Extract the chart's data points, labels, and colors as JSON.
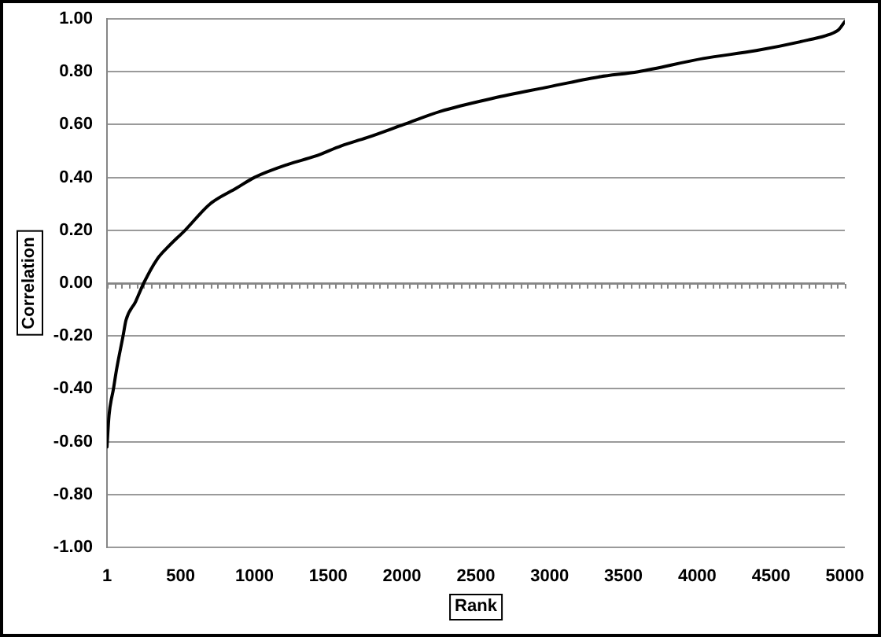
{
  "chart_data": {
    "type": "line",
    "xlabel": "Rank",
    "ylabel": "Correlation",
    "color": "#000000",
    "x": [
      1,
      15,
      45,
      65,
      110,
      130,
      195,
      250,
      340,
      420,
      530,
      700,
      880,
      1000,
      1230,
      1410,
      1590,
      1760,
      2010,
      2260,
      2620,
      2970,
      3330,
      3600,
      4040,
      4400,
      4750,
      4890,
      4960,
      5000
    ],
    "values": [
      -0.62,
      -0.5,
      -0.4,
      -0.33,
      -0.2,
      -0.14,
      -0.07,
      0.0,
      0.09,
      0.14,
      0.2,
      0.3,
      0.36,
      0.4,
      0.45,
      0.48,
      0.52,
      0.55,
      0.6,
      0.65,
      0.7,
      0.74,
      0.78,
      0.8,
      0.85,
      0.88,
      0.92,
      0.94,
      0.96,
      0.99
    ],
    "xlim": [
      1,
      5000
    ],
    "xticks": [
      1,
      {
        "value": 50,
        "label": null
      },
      {
        "value": 100,
        "label": null
      },
      {
        "value": 150,
        "label": null
      },
      {
        "value": 200,
        "label": null
      },
      {
        "value": 250,
        "label": null
      },
      {
        "value": 300,
        "label": null
      },
      {
        "value": 350,
        "label": null
      },
      {
        "value": 400,
        "label": null
      },
      {
        "value": 450,
        "label": null
      },
      500,
      {
        "value": 550,
        "label": null
      },
      {
        "value": 600,
        "label": null
      },
      {
        "value": 650,
        "label": null
      },
      {
        "value": 700,
        "label": null
      },
      {
        "value": 750,
        "label": null
      },
      {
        "value": 800,
        "label": null
      },
      {
        "value": 850,
        "label": null
      },
      {
        "value": 900,
        "label": null
      },
      {
        "value": 950,
        "label": null
      },
      1000,
      {
        "value": 1050,
        "label": null
      },
      {
        "value": 1100,
        "label": null
      },
      {
        "value": 1150,
        "label": null
      },
      {
        "value": 1200,
        "label": null
      },
      {
        "value": 1250,
        "label": null
      },
      {
        "value": 1300,
        "label": null
      },
      {
        "value": 1350,
        "label": null
      },
      {
        "value": 1400,
        "label": null
      },
      {
        "value": 1450,
        "label": null
      },
      1500,
      {
        "value": 1550,
        "label": null
      },
      {
        "value": 1600,
        "label": null
      },
      {
        "value": 1650,
        "label": null
      },
      {
        "value": 1700,
        "label": null
      },
      {
        "value": 1750,
        "label": null
      },
      {
        "value": 1800,
        "label": null
      },
      {
        "value": 1850,
        "label": null
      },
      {
        "value": 1900,
        "label": null
      },
      {
        "value": 1950,
        "label": null
      },
      2000,
      {
        "value": 2050,
        "label": null
      },
      {
        "value": 2100,
        "label": null
      },
      {
        "value": 2150,
        "label": null
      },
      {
        "value": 2200,
        "label": null
      },
      {
        "value": 2250,
        "label": null
      },
      {
        "value": 2300,
        "label": null
      },
      {
        "value": 2350,
        "label": null
      },
      {
        "value": 2400,
        "label": null
      },
      {
        "value": 2450,
        "label": null
      },
      2500,
      {
        "value": 2550,
        "label": null
      },
      {
        "value": 2600,
        "label": null
      },
      {
        "value": 2650,
        "label": null
      },
      {
        "value": 2700,
        "label": null
      },
      {
        "value": 2750,
        "label": null
      },
      {
        "value": 2800,
        "label": null
      },
      {
        "value": 2850,
        "label": null
      },
      {
        "value": 2900,
        "label": null
      },
      {
        "value": 2950,
        "label": null
      },
      3000,
      {
        "value": 3050,
        "label": null
      },
      {
        "value": 3100,
        "label": null
      },
      {
        "value": 3150,
        "label": null
      },
      {
        "value": 3200,
        "label": null
      },
      {
        "value": 3250,
        "label": null
      },
      {
        "value": 3300,
        "label": null
      },
      {
        "value": 3350,
        "label": null
      },
      {
        "value": 3400,
        "label": null
      },
      {
        "value": 3450,
        "label": null
      },
      3500,
      {
        "value": 3550,
        "label": null
      },
      {
        "value": 3600,
        "label": null
      },
      {
        "value": 3650,
        "label": null
      },
      {
        "value": 3700,
        "label": null
      },
      {
        "value": 3750,
        "label": null
      },
      {
        "value": 3800,
        "label": null
      },
      {
        "value": 3850,
        "label": null
      },
      {
        "value": 3900,
        "label": null
      },
      {
        "value": 3950,
        "label": null
      },
      4000,
      {
        "value": 4050,
        "label": null
      },
      {
        "value": 4100,
        "label": null
      },
      {
        "value": 4150,
        "label": null
      },
      {
        "value": 4200,
        "label": null
      },
      {
        "value": 4250,
        "label": null
      },
      {
        "value": 4300,
        "label": null
      },
      {
        "value": 4350,
        "label": null
      },
      {
        "value": 4400,
        "label": null
      },
      {
        "value": 4450,
        "label": null
      },
      4500,
      {
        "value": 4550,
        "label": null
      },
      {
        "value": 4600,
        "label": null
      },
      {
        "value": 4650,
        "label": null
      },
      {
        "value": 4700,
        "label": null
      },
      {
        "value": 4750,
        "label": null
      },
      {
        "value": 4800,
        "label": null
      },
      {
        "value": 4850,
        "label": null
      },
      {
        "value": 4900,
        "label": null
      },
      {
        "value": 4950,
        "label": null
      },
      5000
    ],
    "ylim": [
      -1,
      1
    ],
    "yticks": [
      {
        "value": -1,
        "label": "-1.00"
      },
      {
        "value": -0.8,
        "label": "-0.80"
      },
      {
        "value": -0.6,
        "label": "-0.60"
      },
      {
        "value": -0.4,
        "label": "-0.40"
      },
      {
        "value": -0.2,
        "label": "-0.20"
      },
      {
        "value": 0,
        "label": "0.00"
      },
      {
        "value": 0.2,
        "label": "0.20"
      },
      {
        "value": 0.4,
        "label": "0.40"
      },
      {
        "value": 0.6,
        "label": "0.60"
      },
      {
        "value": 0.8,
        "label": "0.80"
      },
      {
        "value": 1,
        "label": "1.00"
      }
    ],
    "grid": "y"
  }
}
